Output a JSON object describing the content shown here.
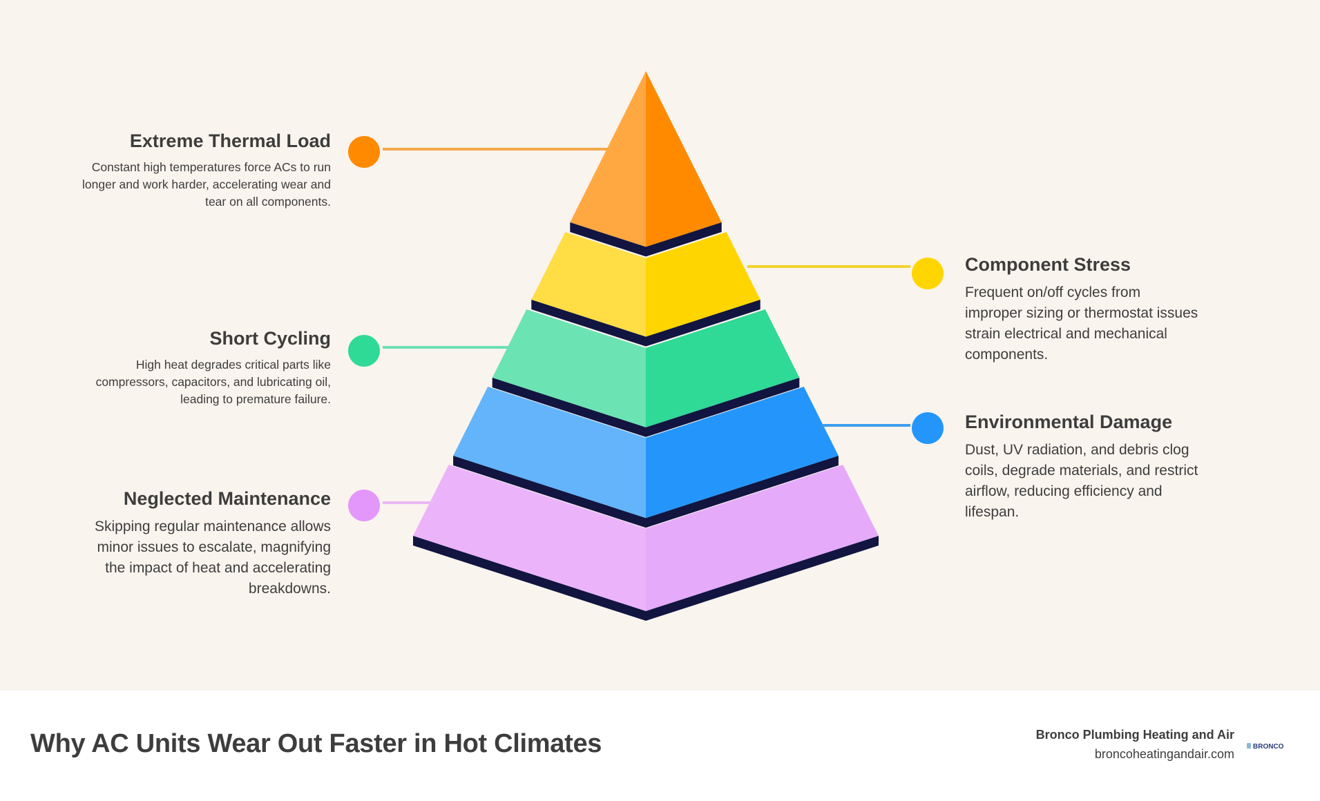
{
  "layers": [
    {
      "name": "layer-top",
      "colors": {
        "left": "#ffa841",
        "right": "#ff8a00"
      }
    },
    {
      "name": "layer-2",
      "colors": {
        "left": "#ffdd45",
        "right": "#ffd500"
      }
    },
    {
      "name": "layer-3",
      "colors": {
        "left": "#6ce3b3",
        "right": "#2fd996"
      }
    },
    {
      "name": "layer-4",
      "colors": {
        "left": "#63b4fa",
        "right": "#2496fb"
      }
    },
    {
      "name": "layer-base",
      "colors": {
        "left": "#ebb4fa",
        "right": "#e5aafa"
      }
    }
  ],
  "edge_color": "#111540",
  "labels": [
    {
      "title": "Extreme Thermal Load",
      "text": "Constant high temperatures force ACs to run longer and work harder, accelerating wear and tear on all components.",
      "dot_color": "#ff8a00",
      "line_color": "#f4a94a"
    },
    {
      "title": "Component Stress",
      "text": "Frequent on/off cycles from improper sizing or thermostat issues strain electrical and mechanical components.",
      "dot_color": "#ffd500",
      "line_color": "#f2d22a"
    },
    {
      "title": "Short Cycling",
      "text": "High heat degrades critical parts like compressors, capacitors, and lubricating oil, leading to premature failure.",
      "dot_color": "#2fd996",
      "line_color": "#6ee0b4"
    },
    {
      "title": "Environmental Damage",
      "text": "Dust, UV radiation, and debris clog coils, degrade materials, and restrict airflow, reducing efficiency and lifespan.",
      "dot_color": "#2496fb",
      "line_color": "#3d9df0"
    },
    {
      "title": "Neglected Maintenance",
      "text": "Skipping regular maintenance allows minor issues to escalate, magnifying the impact of heat and accelerating breakdowns.",
      "dot_color": "#e397fa",
      "line_color": "#e9b8f5"
    }
  ],
  "footer": {
    "title": "Why AC Units Wear Out Faster in Hot Climates",
    "brand_name": "Bronco Plumbing Heating and Air",
    "brand_url": "broncoheatingandair.com",
    "logo_text": "BRONCO"
  }
}
